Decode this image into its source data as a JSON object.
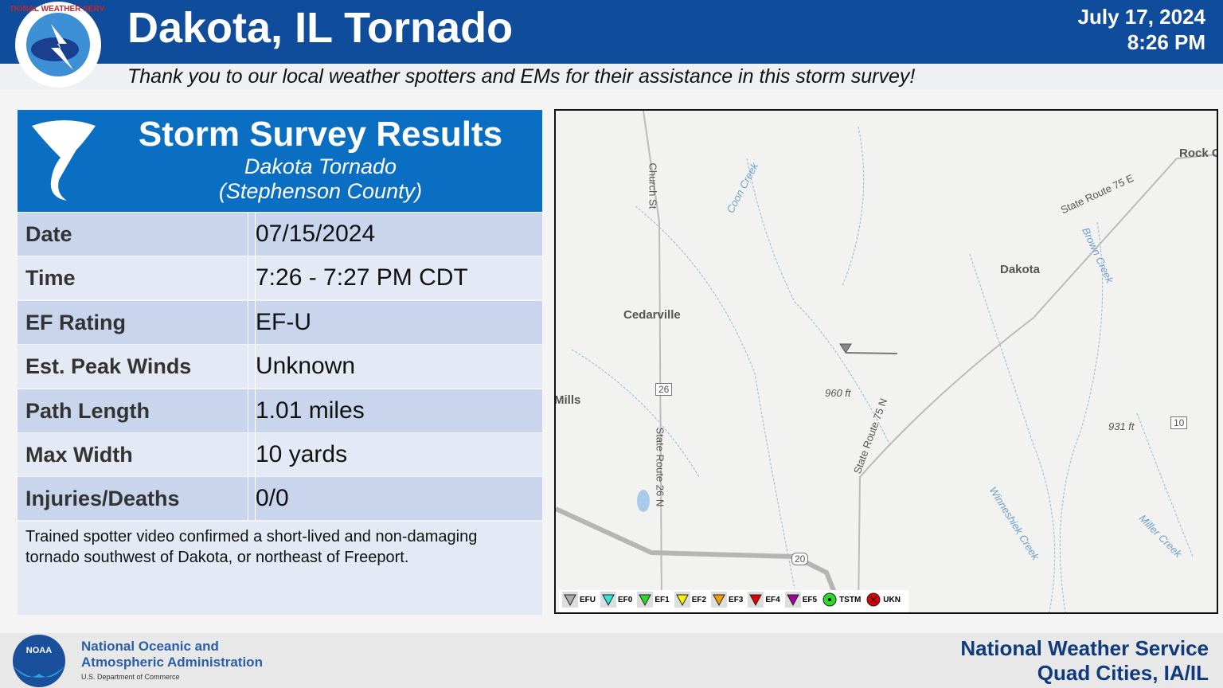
{
  "header": {
    "logo_text": "NATIONAL WEATHER SERVICE",
    "title": "Dakota, IL Tornado",
    "date": "July 17, 2024",
    "time": "8:26 PM",
    "subtitle": "Thank you to our local weather spotters and EMs for their assistance in this storm survey!"
  },
  "panel": {
    "title": "Storm Survey Results",
    "subtitle": "Dakota Tornado",
    "county": "(Stephenson County)",
    "rows": [
      [
        "Date",
        "07/15/2024"
      ],
      [
        "Time",
        "7:26 - 7:27 PM CDT"
      ],
      [
        "EF Rating",
        "EF-U"
      ],
      [
        "Est. Peak Winds",
        "Unknown"
      ],
      [
        "Path Length",
        "1.01 miles"
      ],
      [
        "Max Width",
        "10 yards"
      ],
      [
        "Injuries/Deaths",
        "0/0"
      ]
    ],
    "description": "Trained spotter video confirmed a short-lived and non-damaging tornado southwest of Dakota, or northeast of Freeport."
  },
  "map": {
    "labels": [
      "Church St",
      "Coon Creek",
      "Cedarville",
      "Dakota",
      "Rock C",
      "State Route 75 E",
      "Brown Creek",
      "26",
      "State Route 26 N",
      "Mills",
      "960 ft",
      "State Route 75 N",
      "931 ft",
      "10",
      "Winneshiek Creek",
      "Miller Creek",
      "20"
    ],
    "legend": [
      "EFU",
      "EF0",
      "EF1",
      "EF2",
      "EF3",
      "EF4",
      "EF5",
      "TSTM",
      "UKN"
    ]
  },
  "footer": {
    "agency": [
      "National Oceanic and",
      "Atmospheric Administration"
    ],
    "department": "U.S. Department of Commerce",
    "logo_text": "NOAA",
    "office": [
      "National Weather Service",
      "Quad Cities, IA/IL"
    ]
  }
}
